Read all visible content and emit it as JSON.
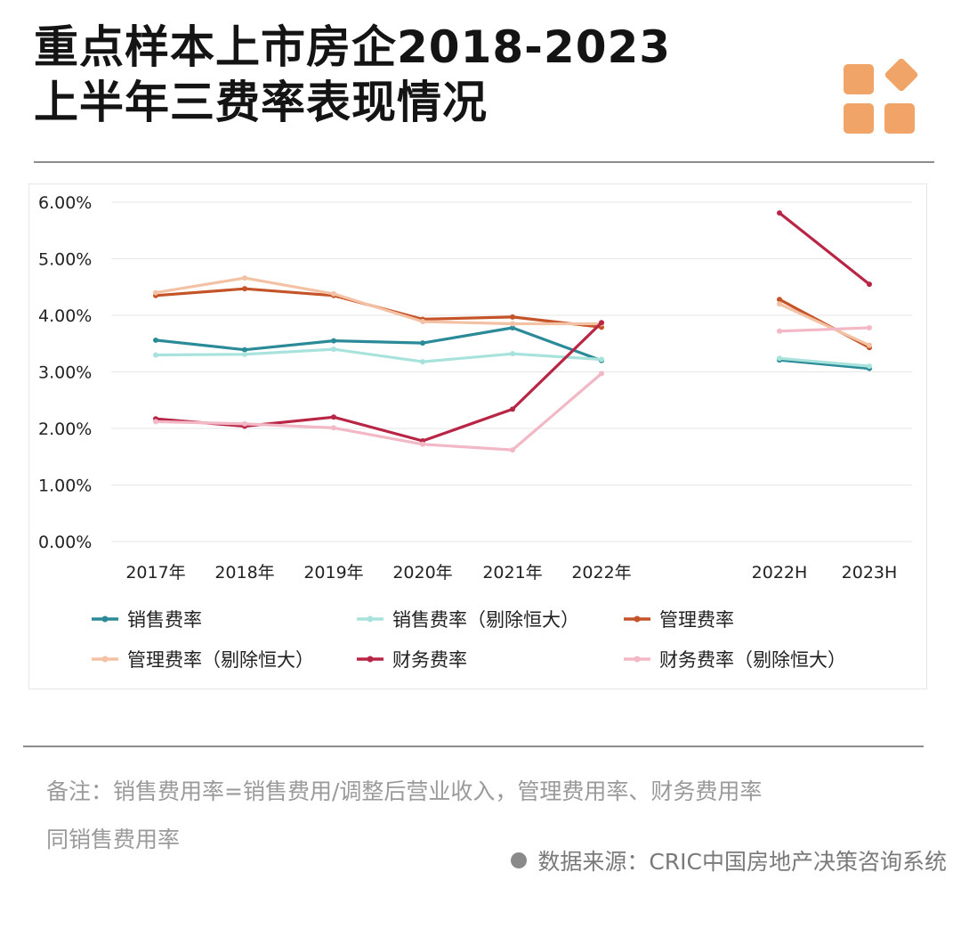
{
  "header": {
    "title_line1": "重点样本上市房企2018-2023",
    "title_line2": "上半年三费率表现情况",
    "logo_icon": "four-squares-logo-icon"
  },
  "colors": {
    "logo": "#f0a468",
    "rule": "#8c8c8c",
    "grid": "#e6e6e6"
  },
  "chart_data": {
    "type": "line",
    "y_tick_labels": [
      "0.00%",
      "1.00%",
      "2.00%",
      "3.00%",
      "4.00%",
      "5.00%",
      "6.00%"
    ],
    "ylim": [
      0,
      6
    ],
    "categories_annual": [
      "2017年",
      "2018年",
      "2019年",
      "2020年",
      "2021年",
      "2022年"
    ],
    "categories_half": [
      "2022H",
      "2023H"
    ],
    "series": [
      {
        "name": "销售费率",
        "color": "#2b8a97",
        "annual": [
          3.56,
          3.39,
          3.55,
          3.51,
          3.78,
          3.2
        ],
        "half": [
          3.21,
          3.06
        ]
      },
      {
        "name": "销售费率（剔除恒大）",
        "color": "#a7e3dc",
        "annual": [
          3.3,
          3.31,
          3.4,
          3.18,
          3.32,
          3.22
        ],
        "half": [
          3.24,
          3.1
        ]
      },
      {
        "name": "管理费率",
        "color": "#c55328",
        "annual": [
          4.35,
          4.47,
          4.35,
          3.93,
          3.97,
          3.79
        ],
        "half": [
          4.28,
          3.43
        ]
      },
      {
        "name": "管理费率（剔除恒大）",
        "color": "#f3c1a3",
        "annual": [
          4.4,
          4.66,
          4.38,
          3.89,
          3.85,
          3.85
        ],
        "half": [
          4.2,
          3.47
        ]
      },
      {
        "name": "财务费率",
        "color": "#b92545",
        "annual": [
          2.17,
          2.04,
          2.2,
          1.78,
          2.34,
          3.87
        ],
        "half": [
          5.81,
          4.55
        ]
      },
      {
        "name": "财务费率（剔除恒大）",
        "color": "#f2b8c6",
        "annual": [
          2.12,
          2.08,
          2.01,
          1.72,
          1.62,
          2.97
        ],
        "half": [
          3.72,
          3.78
        ]
      }
    ]
  },
  "footnote": {
    "line1": "备注：销售费用率=销售费用/调整后营业收入，管理费用率、财务费用率",
    "line2": "同销售费用率"
  },
  "source": {
    "text": "数据来源：CRIC中国房地产决策咨询系统"
  }
}
